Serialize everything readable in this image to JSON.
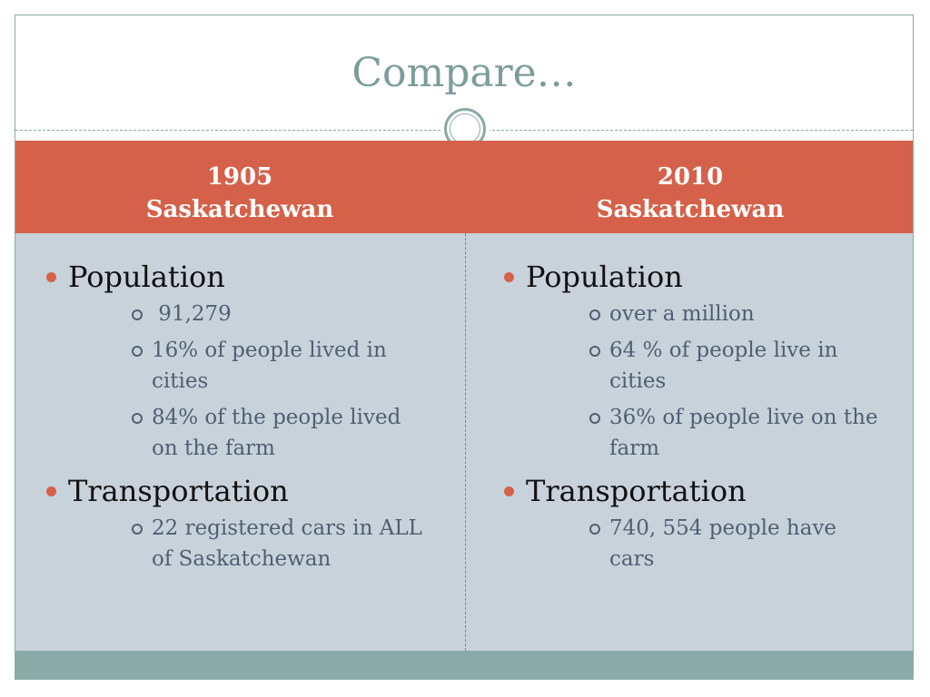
{
  "slide": {
    "title": "Compare…",
    "columns": [
      {
        "heading_year": "1905",
        "heading_place": "Saskatchewan",
        "sections": [
          {
            "label": "Population",
            "items": [
              " 91,279",
              "16% of people lived in cities",
              "84% of the people lived on the farm"
            ]
          },
          {
            "label": "Transportation",
            "items": [
              "22 registered cars in ALL of Saskatchewan"
            ]
          }
        ]
      },
      {
        "heading_year": "2010",
        "heading_place": "Saskatchewan",
        "sections": [
          {
            "label": "Population",
            "items": [
              "over a million",
              "64 % of people live in cities",
              "36% of people live on the farm"
            ]
          },
          {
            "label": "Transportation",
            "items": [
              "740, 554 people have cars"
            ]
          }
        ]
      }
    ]
  },
  "colors": {
    "accent": "#d5614a",
    "teal": "#8aaaa8",
    "body_bg": "#c8d2da",
    "subtext": "#4f5f74"
  }
}
